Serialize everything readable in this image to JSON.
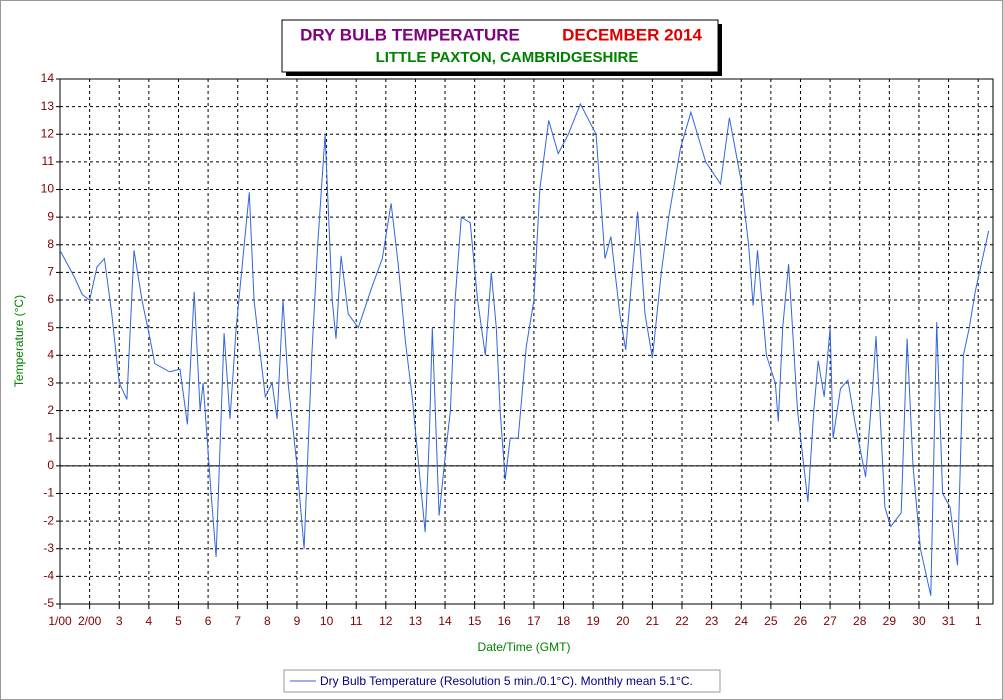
{
  "chart_data": {
    "type": "line",
    "title": "DRY BULB TEMPERATURE",
    "title_date": "DECEMBER 2014",
    "subtitle": "LITTLE PAXTON, CAMBRIDGESHIRE",
    "x_label": "Date/Time (GMT)",
    "y_label": "Temperature (°C)",
    "xlim": [
      0,
      31.5
    ],
    "xticks": [
      {
        "value": 0,
        "label": "1/00"
      },
      {
        "value": 1,
        "label": "2/00"
      },
      {
        "value": 2,
        "label": "3"
      },
      {
        "value": 3,
        "label": "4"
      },
      {
        "value": 4,
        "label": "5"
      },
      {
        "value": 5,
        "label": "6"
      },
      {
        "value": 6,
        "label": "7"
      },
      {
        "value": 7,
        "label": "8"
      },
      {
        "value": 8,
        "label": "9"
      },
      {
        "value": 9,
        "label": "10"
      },
      {
        "value": 10,
        "label": "11"
      },
      {
        "value": 11,
        "label": "12"
      },
      {
        "value": 12,
        "label": "13"
      },
      {
        "value": 13,
        "label": "14"
      },
      {
        "value": 14,
        "label": "15"
      },
      {
        "value": 15,
        "label": "16"
      },
      {
        "value": 16,
        "label": "17"
      },
      {
        "value": 17,
        "label": "18"
      },
      {
        "value": 18,
        "label": "19"
      },
      {
        "value": 19,
        "label": "20"
      },
      {
        "value": 20,
        "label": "21"
      },
      {
        "value": 21,
        "label": "22"
      },
      {
        "value": 22,
        "label": "23"
      },
      {
        "value": 23,
        "label": "24"
      },
      {
        "value": 24,
        "label": "25"
      },
      {
        "value": 25,
        "label": "26"
      },
      {
        "value": 26,
        "label": "27"
      },
      {
        "value": 27,
        "label": "28"
      },
      {
        "value": 28,
        "label": "29"
      },
      {
        "value": 29,
        "label": "30"
      },
      {
        "value": 30,
        "label": "31"
      },
      {
        "value": 31,
        "label": "1"
      }
    ],
    "ylim": [
      -5,
      14
    ],
    "yticks": [
      -5,
      -4,
      -3,
      -2,
      -1,
      0,
      1,
      2,
      3,
      4,
      5,
      6,
      7,
      8,
      9,
      10,
      11,
      12,
      13,
      14
    ],
    "grid": true,
    "x": [
      0,
      0.25,
      0.5,
      0.75,
      1.0,
      1.25,
      1.5,
      1.75,
      2.0,
      2.26,
      2.5,
      2.77,
      3.04,
      3.2,
      3.7,
      4.05,
      4.3,
      4.53,
      4.73,
      4.83,
      5.1,
      5.27,
      5.54,
      5.74,
      5.95,
      6.39,
      6.55,
      6.93,
      7.16,
      7.33,
      7.53,
      7.7,
      8.0,
      8.24,
      8.5,
      8.7,
      8.95,
      9.19,
      9.32,
      9.49,
      9.73,
      10.07,
      10.54,
      10.88,
      11.18,
      11.42,
      11.66,
      11.89,
      12.2,
      12.33,
      12.47,
      12.57,
      12.8,
      12.97,
      13.18,
      13.34,
      13.55,
      13.85,
      14.1,
      14.36,
      14.56,
      14.73,
      14.86,
      15.03,
      15.2,
      15.47,
      15.74,
      16.0,
      16.2,
      16.5,
      16.82,
      17.16,
      17.57,
      18.1,
      18.4,
      18.6,
      18.9,
      19.1,
      19.5,
      19.75,
      20.0,
      20.3,
      20.55,
      20.95,
      21.3,
      21.8,
      22.3,
      22.6,
      23.0,
      23.25,
      23.4,
      23.55,
      23.85,
      24.15,
      24.25,
      24.4,
      24.6,
      24.9,
      25.25,
      25.45,
      25.6,
      25.8,
      26.0,
      26.1,
      26.35,
      26.6,
      26.85,
      27.2,
      27.45,
      27.55,
      27.85,
      28.05,
      28.4,
      28.6,
      28.8,
      29.05,
      29.4,
      29.6,
      29.8,
      30.05,
      30.3,
      30.5,
      30.7,
      30.9,
      31.35
    ],
    "series": [
      {
        "name": "Dry Bulb Temperature (Resolution 5 min./0.1°C). Monthly mean 5.1°C.",
        "color": "#3366dd",
        "values": [
          7.8,
          7.3,
          6.8,
          6.2,
          6.0,
          7.2,
          7.5,
          5.5,
          3.0,
          2.4,
          7.8,
          6.0,
          4.6,
          3.7,
          3.4,
          3.5,
          1.5,
          6.3,
          2.0,
          3.0,
          -1.0,
          -3.3,
          4.8,
          1.7,
          5.0,
          9.9,
          6.0,
          2.5,
          3.0,
          1.7,
          6.0,
          3.0,
          0.0,
          -3.0,
          4.0,
          8.0,
          12.0,
          6.0,
          4.6,
          7.6,
          5.5,
          5.0,
          6.5,
          7.5,
          9.5,
          7.3,
          4.5,
          2.5,
          -1.0,
          -2.4,
          1.0,
          5.0,
          -1.8,
          0.0,
          2.0,
          6.0,
          9.0,
          8.8,
          6.0,
          4.0,
          7.0,
          5.0,
          2.0,
          -0.5,
          1.0,
          1.0,
          4.3,
          6.0,
          10.0,
          12.5,
          11.3,
          12.0,
          13.1,
          12.0,
          7.5,
          8.3,
          5.5,
          4.2,
          9.2,
          5.5,
          3.9,
          7.0,
          9.0,
          11.5,
          12.8,
          11.0,
          10.2,
          12.6,
          10.3,
          8.0,
          5.8,
          7.8,
          4.0,
          3.0,
          1.6,
          5.0,
          7.3,
          2.0,
          -1.3,
          2.0,
          3.8,
          2.5,
          5.0,
          1.0,
          2.8,
          3.1,
          1.5,
          -0.4,
          3.0,
          4.7,
          -1.5,
          -2.2,
          -1.7,
          4.6,
          0.0,
          -3.0,
          -4.7,
          5.2,
          -1.0,
          -1.5,
          -3.6,
          4.0,
          5.0,
          6.3,
          8.5
        ]
      }
    ]
  }
}
